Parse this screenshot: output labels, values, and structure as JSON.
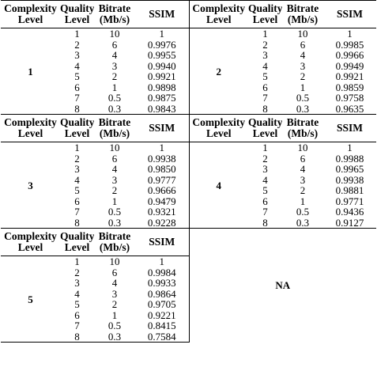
{
  "headers": {
    "complexity": "Complexity Level",
    "quality": "Quality Level",
    "bitrate": "Bitrate (Mb/s)",
    "ssim": "SSIM"
  },
  "header_lines": {
    "complexity_1": "Complexity",
    "complexity_2": "Level",
    "quality_1": "Quality",
    "quality_2": "Level",
    "bitrate_1": "Bitrate",
    "bitrate_2": "(Mb/s)"
  },
  "na_label": "NA",
  "blocks": [
    {
      "complexity": "1",
      "rows": [
        {
          "q": "1",
          "b": "10",
          "s": "1"
        },
        {
          "q": "2",
          "b": "6",
          "s": "0.9976"
        },
        {
          "q": "3",
          "b": "4",
          "s": "0.9955"
        },
        {
          "q": "4",
          "b": "3",
          "s": "0.9940"
        },
        {
          "q": "5",
          "b": "2",
          "s": "0.9921"
        },
        {
          "q": "6",
          "b": "1",
          "s": "0.9898"
        },
        {
          "q": "7",
          "b": "0.5",
          "s": "0.9875"
        },
        {
          "q": "8",
          "b": "0.3",
          "s": "0.9843"
        }
      ]
    },
    {
      "complexity": "2",
      "rows": [
        {
          "q": "1",
          "b": "10",
          "s": "1"
        },
        {
          "q": "2",
          "b": "6",
          "s": "0.9985"
        },
        {
          "q": "3",
          "b": "4",
          "s": "0.9966"
        },
        {
          "q": "4",
          "b": "3",
          "s": "0.9949"
        },
        {
          "q": "5",
          "b": "2",
          "s": "0.9921"
        },
        {
          "q": "6",
          "b": "1",
          "s": "0.9859"
        },
        {
          "q": "7",
          "b": "0.5",
          "s": "0.9758"
        },
        {
          "q": "8",
          "b": "0.3",
          "s": "0.9635"
        }
      ]
    },
    {
      "complexity": "3",
      "rows": [
        {
          "q": "1",
          "b": "10",
          "s": "1"
        },
        {
          "q": "2",
          "b": "6",
          "s": "0.9938"
        },
        {
          "q": "3",
          "b": "4",
          "s": "0.9850"
        },
        {
          "q": "4",
          "b": "3",
          "s": "0.9777"
        },
        {
          "q": "5",
          "b": "2",
          "s": "0.9666"
        },
        {
          "q": "6",
          "b": "1",
          "s": "0.9479"
        },
        {
          "q": "7",
          "b": "0.5",
          "s": "0.9321"
        },
        {
          "q": "8",
          "b": "0.3",
          "s": "0.9228"
        }
      ]
    },
    {
      "complexity": "4",
      "rows": [
        {
          "q": "1",
          "b": "10",
          "s": "1"
        },
        {
          "q": "2",
          "b": "6",
          "s": "0.9988"
        },
        {
          "q": "3",
          "b": "4",
          "s": "0.9965"
        },
        {
          "q": "4",
          "b": "3",
          "s": "0.9938"
        },
        {
          "q": "5",
          "b": "2",
          "s": "0.9881"
        },
        {
          "q": "6",
          "b": "1",
          "s": "0.9771"
        },
        {
          "q": "7",
          "b": "0.5",
          "s": "0.9436"
        },
        {
          "q": "8",
          "b": "0.3",
          "s": "0.9127"
        }
      ]
    },
    {
      "complexity": "5",
      "rows": [
        {
          "q": "1",
          "b": "10",
          "s": "1"
        },
        {
          "q": "2",
          "b": "6",
          "s": "0.9984"
        },
        {
          "q": "3",
          "b": "4",
          "s": "0.9933"
        },
        {
          "q": "4",
          "b": "3",
          "s": "0.9864"
        },
        {
          "q": "5",
          "b": "2",
          "s": "0.9705"
        },
        {
          "q": "6",
          "b": "1",
          "s": "0.9221"
        },
        {
          "q": "7",
          "b": "0.5",
          "s": "0.8415"
        },
        {
          "q": "8",
          "b": "0.3",
          "s": "0.7584"
        }
      ]
    }
  ]
}
